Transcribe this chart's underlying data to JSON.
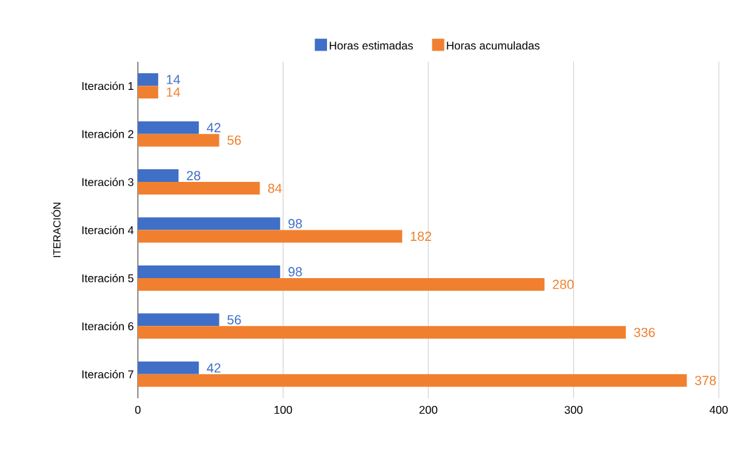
{
  "chart_data": {
    "type": "bar",
    "orientation": "horizontal",
    "ylabel": "ITERACIÓN",
    "categories": [
      "Iteración 1",
      "Iteración 2",
      "Iteración 3",
      "Iteración 4",
      "Iteración 5",
      "Iteración 6",
      "Iteración 7"
    ],
    "series": [
      {
        "name": "Horas estimadas",
        "color": "#3f6fc6",
        "values": [
          14,
          42,
          28,
          98,
          98,
          56,
          42
        ]
      },
      {
        "name": "Horas acumuladas",
        "color": "#f0802f",
        "values": [
          14,
          56,
          84,
          182,
          280,
          336,
          378
        ]
      }
    ],
    "xlim": [
      0,
      400
    ],
    "xticks": [
      0,
      100,
      200,
      300,
      400
    ],
    "grid": "x",
    "legend": "top",
    "data_labels": true
  }
}
